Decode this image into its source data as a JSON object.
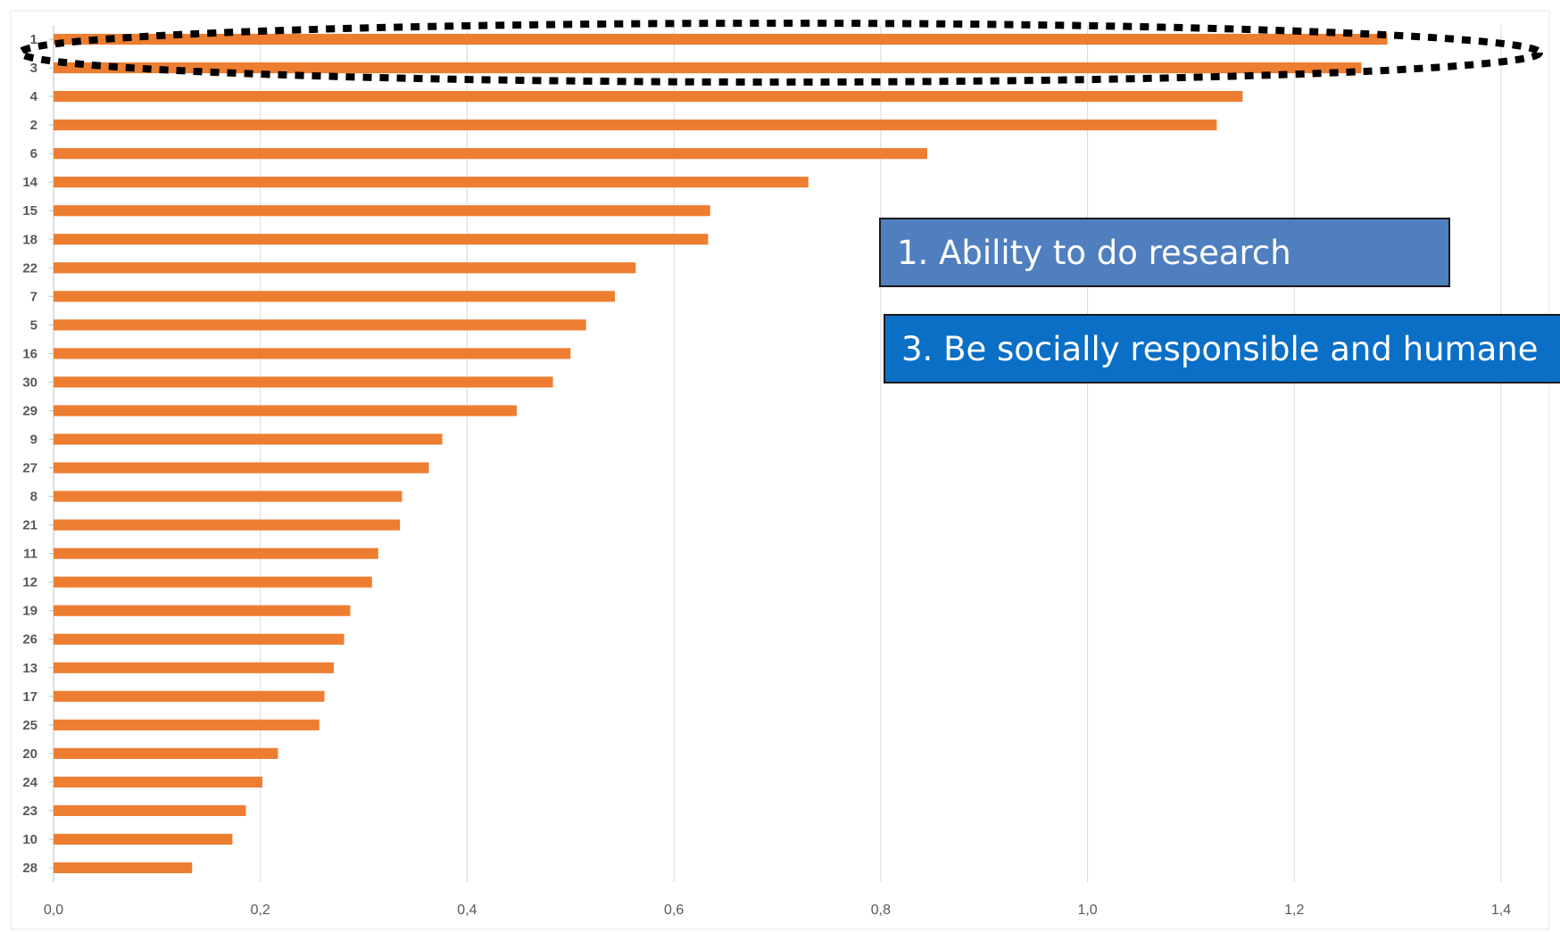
{
  "chart_data": {
    "type": "bar",
    "orientation": "horizontal",
    "categories": [
      "1",
      "3",
      "4",
      "2",
      "6",
      "14",
      "15",
      "18",
      "22",
      "7",
      "5",
      "16",
      "30",
      "29",
      "9",
      "27",
      "8",
      "21",
      "11",
      "12",
      "19",
      "26",
      "13",
      "17",
      "25",
      "20",
      "24",
      "23",
      "10",
      "28"
    ],
    "values": [
      1.29,
      1.265,
      1.15,
      1.125,
      0.845,
      0.73,
      0.635,
      0.633,
      0.563,
      0.543,
      0.515,
      0.5,
      0.483,
      0.448,
      0.376,
      0.363,
      0.337,
      0.335,
      0.314,
      0.308,
      0.287,
      0.281,
      0.271,
      0.262,
      0.257,
      0.217,
      0.202,
      0.186,
      0.173,
      0.134
    ],
    "xlim": [
      0,
      1.4
    ],
    "xticks": [
      "0,0",
      "0,2",
      "0,4",
      "0,6",
      "0,8",
      "1,0",
      "1,2",
      "1,4"
    ],
    "grid": true,
    "bar_color": "#ed7d31",
    "title": "",
    "xlabel": "",
    "ylabel": "",
    "highlight": {
      "shape": "dashed-ellipse",
      "categories": [
        "1",
        "3"
      ]
    },
    "annotations": [
      "1. Ability to do research",
      "3. Be socially responsible and humane"
    ]
  },
  "colors": {
    "bar": "#ed7d31",
    "annotation_1_bg": "#4f7fbf",
    "annotation_2_bg": "#0b6fc6",
    "grid": "#d9d9d9",
    "tick_text": "#595959"
  }
}
